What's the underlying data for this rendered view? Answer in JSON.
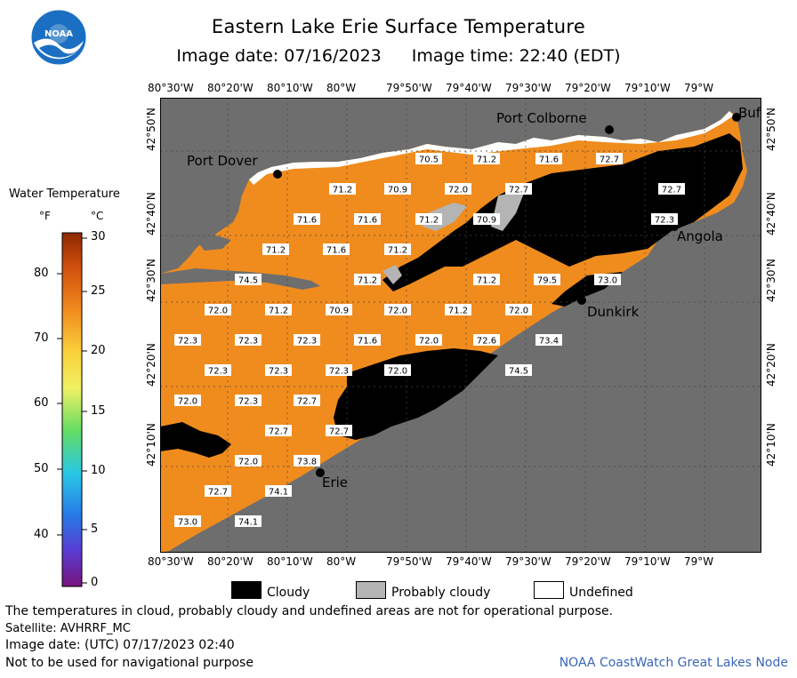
{
  "header": {
    "title": "Eastern Lake Erie Surface Temperature",
    "image_date": "Image date: 07/16/2023",
    "image_time": "Image time: 22:40 (EDT)",
    "logo_text": "NOAA"
  },
  "legend": {
    "title": "Water Temperature",
    "unit_f": "°F",
    "unit_c": "°C",
    "f_ticks": [
      "80",
      "70",
      "60",
      "50",
      "40"
    ],
    "c_ticks": [
      "30",
      "25",
      "20",
      "15",
      "10",
      "5",
      "0"
    ]
  },
  "axes": {
    "top_lon": [
      "80°30'W",
      "80°20'W",
      "80°10'W",
      "80°W",
      "79°50'W",
      "79°40'W",
      "79°30'W",
      "79°20'W",
      "79°10'W",
      "79°W"
    ],
    "bottom_lon": [
      "80°30'W",
      "80°20'W",
      "80°10'W",
      "80°W",
      "79°50'W",
      "79°40'W",
      "79°30'W",
      "79°20'W",
      "79°10'W",
      "79°W"
    ],
    "left_lat": [
      "42°50'N",
      "42°40'N",
      "42°30'N",
      "42°20'N",
      "42°10'N"
    ],
    "right_lat": [
      "42°50'N",
      "42°40'N",
      "42°30'N",
      "42°20'N",
      "42°10'N"
    ]
  },
  "cities": {
    "port_colborne": "Port Colborne",
    "port_dover": "Port Dover",
    "buffalo": "Buf",
    "angola": "Angola",
    "dunkirk": "Dunkirk",
    "erie": "Erie"
  },
  "temperatures": [
    "70.5",
    "71.2",
    "71.6",
    "72.7",
    "71.2",
    "70.9",
    "72.0",
    "72.7",
    "72.7",
    "71.6",
    "71.6",
    "71.2",
    "70.9",
    "72.3",
    "71.2",
    "71.6",
    "71.2",
    "74.5",
    "71.2",
    "71.2",
    "79.5",
    "73.0",
    "72.0",
    "71.2",
    "70.9",
    "72.0",
    "71.2",
    "72.0",
    "72.3",
    "72.3",
    "72.3",
    "71.6",
    "72.0",
    "72.6",
    "73.4",
    "72.3",
    "72.3",
    "72.3",
    "72.0",
    "74.5",
    "72.0",
    "72.3",
    "72.7",
    "72.7",
    "72.7",
    "72.0",
    "73.8",
    "72.7",
    "74.1",
    "73.0",
    "74.1"
  ],
  "key": {
    "cloudy": "Cloudy",
    "probably_cloudy": "Probably cloudy",
    "undefined": "Undefined",
    "colors": {
      "cloudy": "#000000",
      "probably_cloudy": "#b4b4b4",
      "undefined": "#ffffff",
      "land": "#6e6e6e",
      "water": "#f08c1e"
    }
  },
  "footer": {
    "note": "The temperatures in cloud, probably cloudy and undefined areas are not for operational purpose.",
    "satellite": "Satellite: AVHRRF_MC",
    "utc_date": "Image date: (UTC) 07/17/2023  02:40",
    "nav_warning": "Not to be used for navigational purpose",
    "credit": "NOAA CoastWatch Great Lakes Node"
  }
}
